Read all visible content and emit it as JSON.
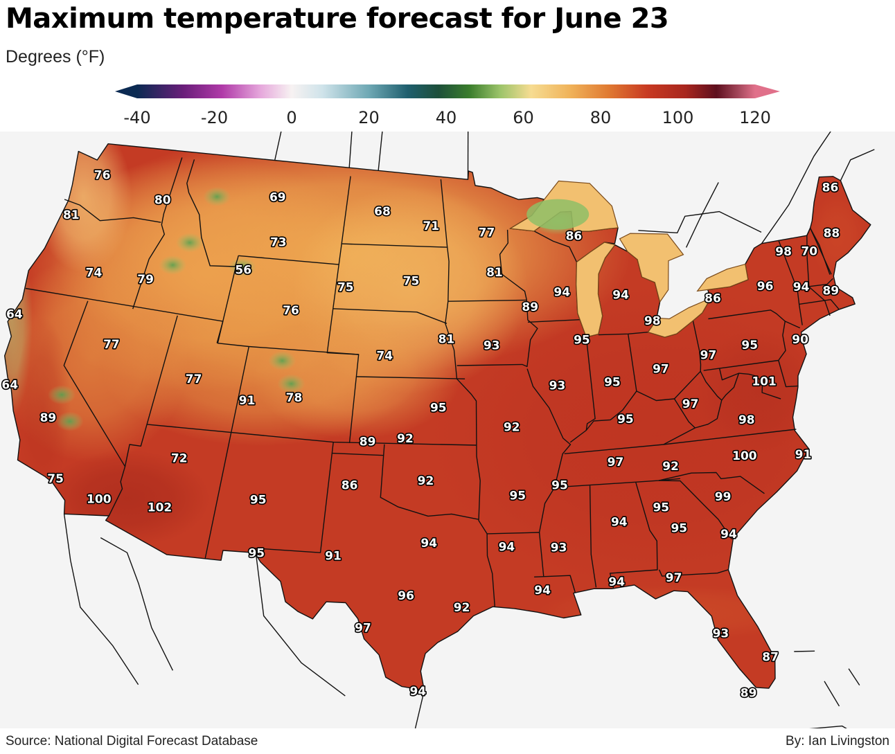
{
  "title": "Maximum temperature forecast for June 23",
  "subtitle": "Degrees (°F)",
  "source": "Source: National Digital Forecast Database",
  "byline": "By: Ian Livingston",
  "legend": {
    "min": -40,
    "max": 120,
    "ticks": [
      -40,
      -20,
      0,
      20,
      40,
      60,
      80,
      100,
      120
    ],
    "stops": [
      {
        "value": -40,
        "color": "#0b2a52"
      },
      {
        "value": -28,
        "color": "#6a1e7a"
      },
      {
        "value": -18,
        "color": "#b03aa8"
      },
      {
        "value": -8,
        "color": "#e6a8dc"
      },
      {
        "value": 0,
        "color": "#f7f2f2"
      },
      {
        "value": 8,
        "color": "#cfe3ea"
      },
      {
        "value": 20,
        "color": "#6ea8b4"
      },
      {
        "value": 30,
        "color": "#1f5f6e"
      },
      {
        "value": 38,
        "color": "#1d4f3a"
      },
      {
        "value": 46,
        "color": "#3a7d2c"
      },
      {
        "value": 54,
        "color": "#9cc46a"
      },
      {
        "value": 62,
        "color": "#f6dc92"
      },
      {
        "value": 72,
        "color": "#f0b35a"
      },
      {
        "value": 82,
        "color": "#e07a32"
      },
      {
        "value": 92,
        "color": "#c83a22"
      },
      {
        "value": 102,
        "color": "#a8261e"
      },
      {
        "value": 110,
        "color": "#5e0f1e"
      },
      {
        "value": 116,
        "color": "#a84a5e"
      },
      {
        "value": 120,
        "color": "#e0708a"
      }
    ]
  },
  "temperatures": [
    {
      "value": "76",
      "lon": -122.3,
      "lat": 47.6
    },
    {
      "value": "80",
      "lon": -117.4,
      "lat": 47.0
    },
    {
      "value": "81",
      "lon": -123.3,
      "lat": 45.6
    },
    {
      "value": "74",
      "lon": -120.3,
      "lat": 43.3
    },
    {
      "value": "79",
      "lon": -116.8,
      "lat": 43.4
    },
    {
      "value": "64",
      "lon": -124.2,
      "lat": 40.8
    },
    {
      "value": "77",
      "lon": -117.6,
      "lat": 40.3
    },
    {
      "value": "64",
      "lon": -122.7,
      "lat": 37.7
    },
    {
      "value": "89",
      "lon": -119.8,
      "lat": 36.6
    },
    {
      "value": "75",
      "lon": -118.2,
      "lat": 34.0
    },
    {
      "value": "100",
      "lon": -115.5,
      "lat": 33.4
    },
    {
      "value": "102",
      "lon": -112.1,
      "lat": 33.4
    },
    {
      "value": "72",
      "lon": -111.7,
      "lat": 35.7
    },
    {
      "value": "77",
      "lon": -112.0,
      "lat": 39.3
    },
    {
      "value": "91",
      "lon": -108.5,
      "lat": 38.6
    },
    {
      "value": "78",
      "lon": -105.7,
      "lat": 38.9
    },
    {
      "value": "95",
      "lon": -106.8,
      "lat": 34.2
    },
    {
      "value": "95",
      "lon": -106.4,
      "lat": 31.8
    },
    {
      "value": "69",
      "lon": -109.2,
      "lat": 47.8
    },
    {
      "value": "73",
      "lon": -108.5,
      "lat": 45.8
    },
    {
      "value": "56",
      "lon": -110.5,
      "lat": 44.4
    },
    {
      "value": "76",
      "lon": -106.8,
      "lat": 42.8
    },
    {
      "value": "68",
      "lon": -101.4,
      "lat": 47.5
    },
    {
      "value": "71",
      "lon": -97.8,
      "lat": 46.9
    },
    {
      "value": "75",
      "lon": -99.0,
      "lat": 44.4
    },
    {
      "value": "75",
      "lon": -103.4,
      "lat": 44.0
    },
    {
      "value": "74",
      "lon": -100.4,
      "lat": 41.0
    },
    {
      "value": "81",
      "lon": -96.5,
      "lat": 41.8
    },
    {
      "value": "77",
      "lon": -93.8,
      "lat": 46.6
    },
    {
      "value": "81",
      "lon": -93.3,
      "lat": 44.8
    },
    {
      "value": "86",
      "lon": -87.6,
      "lat": 46.3
    },
    {
      "value": "89",
      "lon": -91.0,
      "lat": 43.2
    },
    {
      "value": "94",
      "lon": -88.8,
      "lat": 43.8
    },
    {
      "value": "94",
      "lon": -84.9,
      "lat": 43.5
    },
    {
      "value": "93",
      "lon": -93.6,
      "lat": 41.5
    },
    {
      "value": "95",
      "lon": -87.8,
      "lat": 41.6
    },
    {
      "value": "98",
      "lon": -83.1,
      "lat": 42.2
    },
    {
      "value": "93",
      "lon": -89.6,
      "lat": 39.6
    },
    {
      "value": "95",
      "lon": -86.2,
      "lat": 39.6
    },
    {
      "value": "97",
      "lon": -83.1,
      "lat": 40.0
    },
    {
      "value": "95",
      "lon": -96.9,
      "lat": 38.7
    },
    {
      "value": "92",
      "lon": -92.5,
      "lat": 37.8
    },
    {
      "value": "89",
      "lon": -101.0,
      "lat": 37.1
    },
    {
      "value": "92",
      "lon": -98.8,
      "lat": 37.3
    },
    {
      "value": "95",
      "lon": -85.7,
      "lat": 37.9
    },
    {
      "value": "97",
      "lon": -81.7,
      "lat": 38.3
    },
    {
      "value": "97",
      "lon": -86.6,
      "lat": 36.0
    },
    {
      "value": "92",
      "lon": -83.5,
      "lat": 35.6
    },
    {
      "value": "86",
      "lon": -101.8,
      "lat": 35.1
    },
    {
      "value": "92",
      "lon": -97.5,
      "lat": 35.4
    },
    {
      "value": "95",
      "lon": -92.3,
      "lat": 34.7
    },
    {
      "value": "95",
      "lon": -89.9,
      "lat": 35.1
    },
    {
      "value": "91",
      "lon": -102.3,
      "lat": 31.9
    },
    {
      "value": "94",
      "lon": -97.2,
      "lat": 32.6
    },
    {
      "value": "96",
      "lon": -98.3,
      "lat": 30.2
    },
    {
      "value": "97",
      "lon": -100.4,
      "lat": 28.7
    },
    {
      "value": "92",
      "lon": -95.4,
      "lat": 29.7
    },
    {
      "value": "94",
      "lon": -97.5,
      "lat": 25.9
    },
    {
      "value": "94",
      "lon": -93.0,
      "lat": 32.4
    },
    {
      "value": "93",
      "lon": -90.2,
      "lat": 32.3
    },
    {
      "value": "94",
      "lon": -91.2,
      "lat": 30.4
    },
    {
      "value": "94",
      "lon": -86.8,
      "lat": 33.3
    },
    {
      "value": "94",
      "lon": -87.3,
      "lat": 30.6
    },
    {
      "value": "95",
      "lon": -84.4,
      "lat": 33.8
    },
    {
      "value": "95",
      "lon": -83.6,
      "lat": 32.8
    },
    {
      "value": "97",
      "lon": -84.3,
      "lat": 30.6
    },
    {
      "value": "94",
      "lon": -81.0,
      "lat": 32.3
    },
    {
      "value": "99",
      "lon": -80.9,
      "lat": 34.0
    },
    {
      "value": "100",
      "lon": -79.2,
      "lat": 35.7
    },
    {
      "value": "91",
      "lon": -75.9,
      "lat": 35.4
    },
    {
      "value": "93",
      "lon": -82.4,
      "lat": 27.9
    },
    {
      "value": "87",
      "lon": -80.2,
      "lat": 26.6
    },
    {
      "value": "89",
      "lon": -81.6,
      "lat": 25.1
    },
    {
      "value": "98",
      "lon": -78.6,
      "lat": 37.3
    },
    {
      "value": "101",
      "lon": -77.0,
      "lat": 38.9
    },
    {
      "value": "95",
      "lon": -77.3,
      "lat": 40.6
    },
    {
      "value": "97",
      "lon": -80.0,
      "lat": 40.4
    },
    {
      "value": "90",
      "lon": -74.1,
      "lat": 40.5
    },
    {
      "value": "86",
      "lon": -78.9,
      "lat": 42.9
    },
    {
      "value": "96",
      "lon": -75.3,
      "lat": 43.1
    },
    {
      "value": "98",
      "lon": -73.4,
      "lat": 44.5
    },
    {
      "value": "70",
      "lon": -71.7,
      "lat": 44.3
    },
    {
      "value": "94",
      "lon": -73.0,
      "lat": 42.8
    },
    {
      "value": "89",
      "lon": -71.2,
      "lat": 42.4
    },
    {
      "value": "88",
      "lon": -69.8,
      "lat": 44.9
    },
    {
      "value": "86",
      "lon": -68.7,
      "lat": 46.9
    }
  ]
}
